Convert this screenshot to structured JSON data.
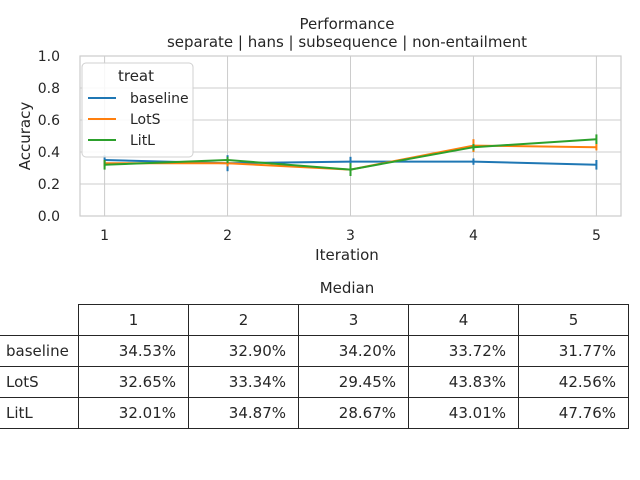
{
  "chart_data": {
    "type": "line",
    "title": "Performance",
    "subtitle": "separate | hans | subsequence | non-entailment",
    "xlabel": "Iteration",
    "ylabel": "Accuracy",
    "x": [
      1,
      2,
      3,
      4,
      5
    ],
    "xticks": [
      "1",
      "2",
      "3",
      "4",
      "5"
    ],
    "yticks": [
      "0.0",
      "0.2",
      "0.4",
      "0.6",
      "0.8",
      "1.0"
    ],
    "ylim": [
      0,
      1
    ],
    "xlim": [
      0.8,
      5.2
    ],
    "grid": true,
    "legend": {
      "title": "treat",
      "position": "top-left"
    },
    "series": [
      {
        "name": "baseline",
        "color": "#1f77b4",
        "values": [
          0.35,
          0.33,
          0.34,
          0.34,
          0.32
        ],
        "err": [
          0.03,
          0.05,
          0.03,
          0.02,
          0.03
        ]
      },
      {
        "name": "LotS",
        "color": "#ff7f0e",
        "values": [
          0.33,
          0.33,
          0.29,
          0.44,
          0.43
        ],
        "err": [
          0.02,
          0.02,
          0.03,
          0.04,
          0.02
        ]
      },
      {
        "name": "LitL",
        "color": "#2ca02c",
        "values": [
          0.32,
          0.35,
          0.29,
          0.43,
          0.48
        ],
        "err": [
          0.03,
          0.02,
          0.04,
          0.02,
          0.03
        ]
      }
    ]
  },
  "table": {
    "title": "Median",
    "columns": [
      "1",
      "2",
      "3",
      "4",
      "5"
    ],
    "rows": [
      {
        "label": "baseline",
        "cells": [
          "34.53%",
          "32.90%",
          "34.20%",
          "33.72%",
          "31.77%"
        ]
      },
      {
        "label": "LotS",
        "cells": [
          "32.65%",
          "33.34%",
          "29.45%",
          "43.83%",
          "42.56%"
        ]
      },
      {
        "label": "LitL",
        "cells": [
          "32.01%",
          "34.87%",
          "28.67%",
          "43.01%",
          "47.76%"
        ]
      }
    ]
  }
}
